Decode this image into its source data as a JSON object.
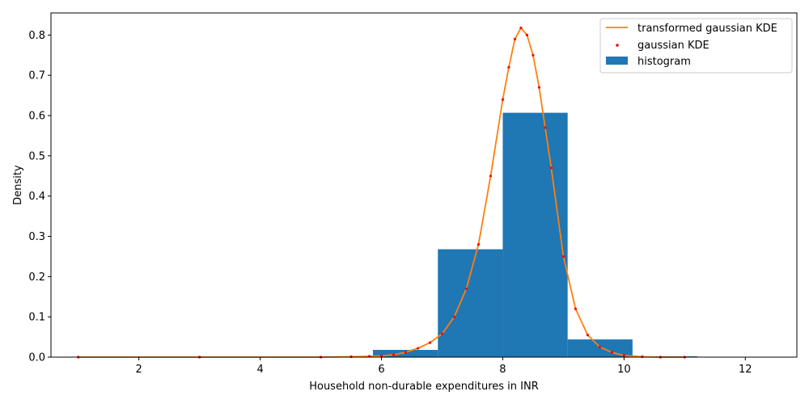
{
  "chart_data": {
    "type": "bar",
    "title": "",
    "xlabel": "Household non-durable expenditures in INR",
    "ylabel": "Density",
    "xlim": [
      0.55,
      12.85
    ],
    "ylim": [
      0,
      0.855
    ],
    "xticks": [
      2,
      4,
      6,
      8,
      10,
      12
    ],
    "yticks": [
      0.0,
      0.1,
      0.2,
      0.3,
      0.4,
      0.5,
      0.6,
      0.7,
      0.8
    ],
    "grid": false,
    "legend_position": "top-right",
    "histogram": {
      "name": "histogram",
      "color": "#1f77b4",
      "bins": [
        {
          "x0": 5.86,
          "x1": 6.93,
          "value": 0.018
        },
        {
          "x0": 6.93,
          "x1": 8.0,
          "value": 0.268
        },
        {
          "x0": 8.0,
          "x1": 9.07,
          "value": 0.607
        },
        {
          "x0": 9.07,
          "x1": 10.14,
          "value": 0.044
        },
        {
          "x0": 10.14,
          "x1": 11.21,
          "value": 0.002
        }
      ]
    },
    "series": [
      {
        "name": "transformed gaussian KDE",
        "type": "line",
        "color": "#ff7f0e",
        "x": [
          1.0,
          3.0,
          5.0,
          5.5,
          5.8,
          6.0,
          6.2,
          6.4,
          6.6,
          6.8,
          7.0,
          7.2,
          7.4,
          7.6,
          7.8,
          8.0,
          8.1,
          8.2,
          8.3,
          8.4,
          8.5,
          8.6,
          8.7,
          8.8,
          9.0,
          9.2,
          9.4,
          9.6,
          9.8,
          10.0,
          10.3,
          10.6,
          11.0
        ],
        "y": [
          0.0,
          0.0,
          0.0,
          0.001,
          0.002,
          0.003,
          0.006,
          0.012,
          0.022,
          0.036,
          0.058,
          0.1,
          0.17,
          0.28,
          0.45,
          0.64,
          0.72,
          0.79,
          0.818,
          0.8,
          0.75,
          0.67,
          0.57,
          0.47,
          0.25,
          0.12,
          0.055,
          0.025,
          0.012,
          0.004,
          0.001,
          0.0,
          0.0
        ]
      },
      {
        "name": "gaussian KDE",
        "type": "scatter",
        "color": "#ff0000",
        "x": [
          1.0,
          3.0,
          5.0,
          5.5,
          5.8,
          6.0,
          6.2,
          6.4,
          6.6,
          6.8,
          7.0,
          7.2,
          7.4,
          7.6,
          7.8,
          8.0,
          8.1,
          8.2,
          8.3,
          8.4,
          8.5,
          8.6,
          8.7,
          8.8,
          9.0,
          9.2,
          9.4,
          9.6,
          9.8,
          10.0,
          10.3,
          10.6,
          11.0
        ],
        "y": [
          0.0,
          0.0,
          0.0,
          0.001,
          0.002,
          0.003,
          0.006,
          0.012,
          0.022,
          0.036,
          0.058,
          0.1,
          0.17,
          0.28,
          0.45,
          0.64,
          0.72,
          0.79,
          0.818,
          0.8,
          0.75,
          0.67,
          0.57,
          0.47,
          0.25,
          0.12,
          0.055,
          0.025,
          0.012,
          0.004,
          0.001,
          0.0,
          0.0
        ]
      }
    ]
  }
}
